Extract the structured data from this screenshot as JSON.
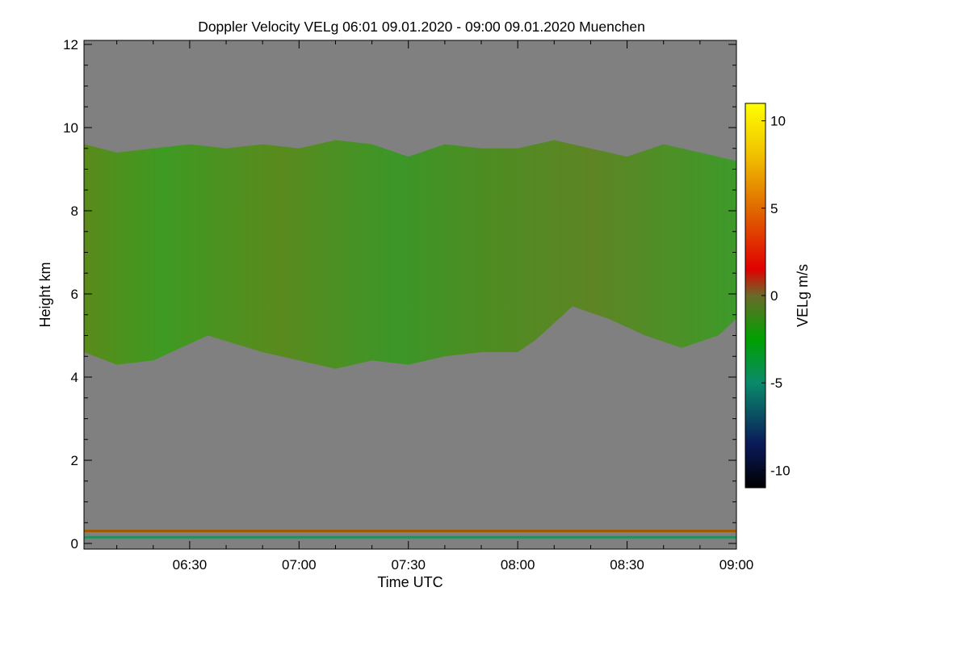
{
  "chart_data": {
    "type": "heatmap",
    "title": "Doppler Velocity VELg   06:01 09.01.2020 - 09:00 09.01.2020 Muenchen",
    "xlabel": "Time UTC",
    "ylabel": "Height km",
    "x_ticks": [
      "06:30",
      "07:00",
      "07:30",
      "08:00",
      "08:30",
      "09:00"
    ],
    "y_ticks": [
      "0",
      "2",
      "4",
      "6",
      "8",
      "10",
      "12"
    ],
    "xlim": [
      "06:01",
      "09:00"
    ],
    "ylim": [
      0,
      12
    ],
    "background_color": "#808080",
    "colorbar": {
      "label": "VELg m/s",
      "range": [
        -11,
        11
      ],
      "ticks": [
        "10",
        "5",
        "0",
        "-5",
        "-10"
      ],
      "tick_values": [
        10,
        5,
        0,
        -5,
        -10
      ],
      "stops": [
        {
          "value": -11,
          "color": "#000000"
        },
        {
          "value": -8.5,
          "color": "#0a1a5a"
        },
        {
          "value": -5,
          "color": "#0a8a6a"
        },
        {
          "value": -2.5,
          "color": "#00a000"
        },
        {
          "value": 0,
          "color": "#6a6a2a"
        },
        {
          "value": 1.5,
          "color": "#e00000"
        },
        {
          "value": 5,
          "color": "#e06a00"
        },
        {
          "value": 8,
          "color": "#f0c000"
        },
        {
          "value": 11,
          "color": "#ffff00"
        }
      ]
    },
    "cloud_layer": {
      "velocity_range_m_s": [
        -2.5,
        0.5
      ],
      "base_km": [
        [
          "06:01",
          4.6
        ],
        [
          "06:10",
          4.3
        ],
        [
          "06:20",
          4.4
        ],
        [
          "06:35",
          5.0
        ],
        [
          "06:50",
          4.6
        ],
        [
          "07:00",
          4.4
        ],
        [
          "07:10",
          4.2
        ],
        [
          "07:20",
          4.4
        ],
        [
          "07:30",
          4.3
        ],
        [
          "07:40",
          4.5
        ],
        [
          "07:50",
          4.6
        ],
        [
          "08:00",
          4.6
        ],
        [
          "08:05",
          4.9
        ],
        [
          "08:10",
          5.3
        ],
        [
          "08:15",
          5.7
        ],
        [
          "08:25",
          5.4
        ],
        [
          "08:35",
          5.0
        ],
        [
          "08:45",
          4.7
        ],
        [
          "08:55",
          5.0
        ],
        [
          "09:00",
          5.4
        ]
      ],
      "top_km": [
        [
          "06:01",
          9.6
        ],
        [
          "06:10",
          9.4
        ],
        [
          "06:20",
          9.5
        ],
        [
          "06:30",
          9.6
        ],
        [
          "06:40",
          9.5
        ],
        [
          "06:50",
          9.6
        ],
        [
          "07:00",
          9.5
        ],
        [
          "07:10",
          9.7
        ],
        [
          "07:20",
          9.6
        ],
        [
          "07:30",
          9.3
        ],
        [
          "07:40",
          9.6
        ],
        [
          "07:50",
          9.5
        ],
        [
          "08:00",
          9.5
        ],
        [
          "08:10",
          9.7
        ],
        [
          "08:20",
          9.5
        ],
        [
          "08:30",
          9.3
        ],
        [
          "08:40",
          9.6
        ],
        [
          "08:50",
          9.4
        ],
        [
          "09:00",
          9.2
        ]
      ]
    },
    "near_surface_layers_km": [
      {
        "height": 0.3,
        "color": "#a05a00"
      },
      {
        "height": 0.15,
        "color": "#209060"
      }
    ]
  }
}
